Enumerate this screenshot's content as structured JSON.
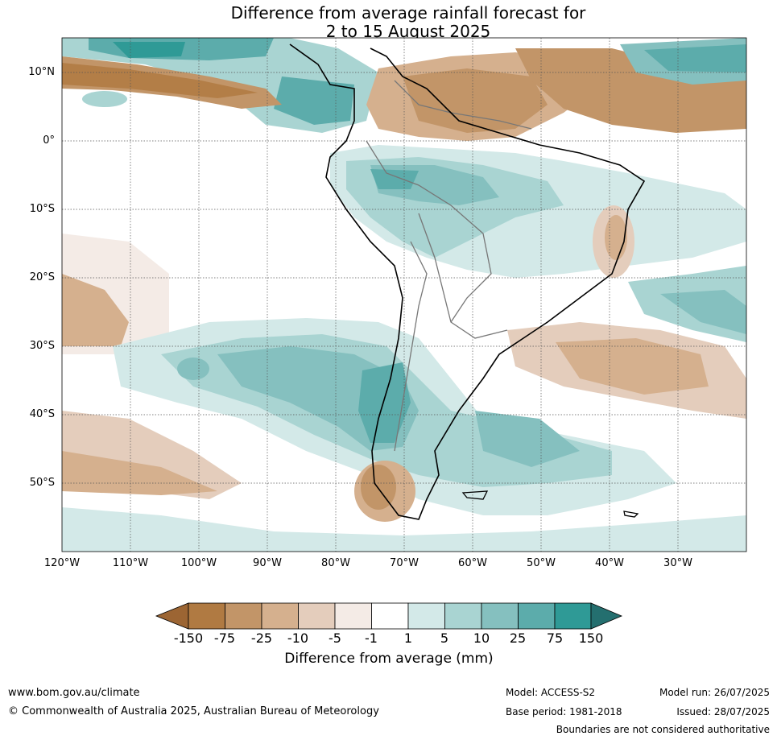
{
  "title": {
    "line1": "Difference from average rainfall forecast for",
    "line2": "2 to 15 August 2025"
  },
  "map": {
    "region": "South America",
    "latitude_labels": [
      "10°N",
      "0°",
      "10°S",
      "20°S",
      "30°S",
      "40°S",
      "50°S"
    ],
    "longitude_labels": [
      "120°W",
      "110°W",
      "100°W",
      "90°W",
      "80°W",
      "70°W",
      "60°W",
      "50°W",
      "40°W",
      "30°W"
    ]
  },
  "colorbar": {
    "title": "Difference from average (mm)",
    "ticks": [
      "-150",
      "-75",
      "-25",
      "-10",
      "-5",
      "-1",
      "1",
      "5",
      "10",
      "25",
      "75",
      "150"
    ],
    "colors": [
      "#9c6533",
      "#b07a42",
      "#c29568",
      "#d5b08e",
      "#e4cdbc",
      "#f4ebe6",
      "#ffffff",
      "#d3e9e8",
      "#a9d4d2",
      "#85c0bf",
      "#5cacab",
      "#2f9a96",
      "#246f6f"
    ]
  },
  "footer": {
    "website": "www.bom.gov.au/climate",
    "copyright": "© Commonwealth of Australia 2025, Australian Bureau of Meteorology",
    "model": "Model: ACCESS-S2",
    "base_period": "Base period: 1981-2018",
    "model_run": "Model run: 26/07/2025",
    "issued": "Issued: 28/07/2025",
    "disclaimer": "Boundaries are not considered authoritative"
  }
}
